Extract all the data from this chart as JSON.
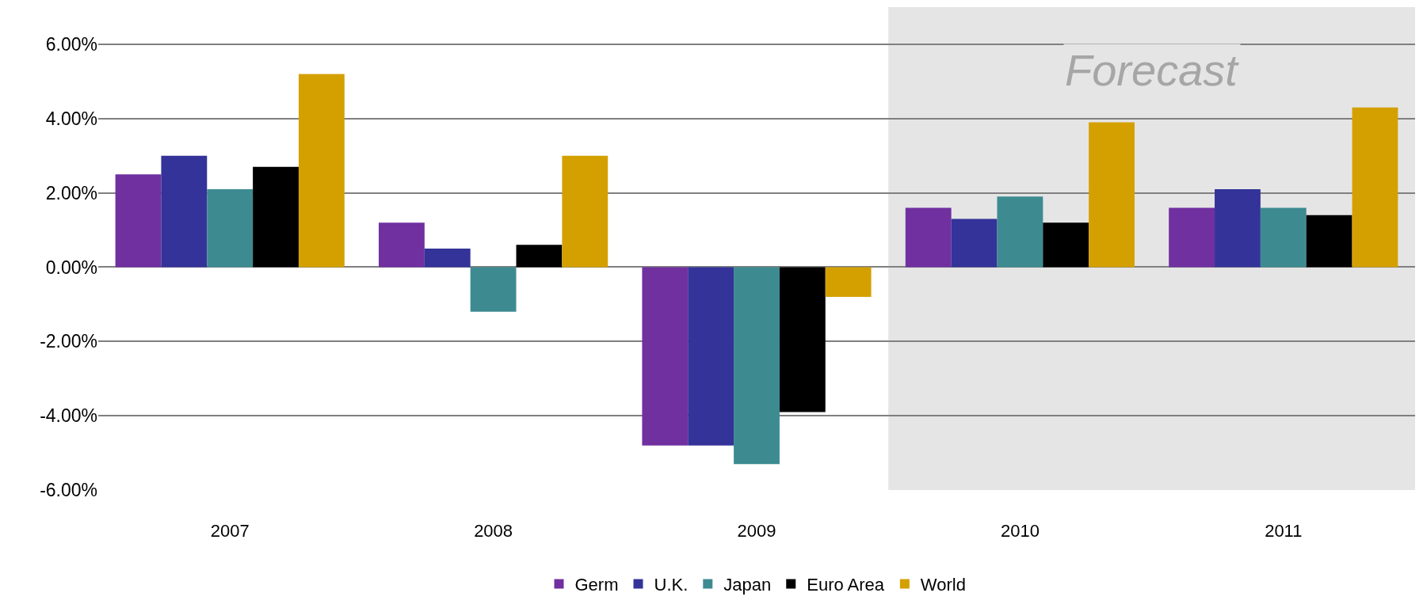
{
  "chart_data": {
    "type": "bar",
    "categories": [
      "2007",
      "2008",
      "2009",
      "2010",
      "2011"
    ],
    "series": [
      {
        "name": "Germ",
        "color": "#7030a0",
        "values": [
          2.5,
          1.2,
          -4.8,
          1.6,
          1.6
        ]
      },
      {
        "name": "U.K.",
        "color": "#333399",
        "values": [
          3.0,
          0.5,
          -4.8,
          1.3,
          2.1
        ]
      },
      {
        "name": "Japan",
        "color": "#3d8b91",
        "values": [
          2.1,
          -1.2,
          -5.3,
          1.9,
          1.6
        ]
      },
      {
        "name": "Euro Area",
        "color": "#000000",
        "values": [
          2.7,
          0.6,
          -3.9,
          1.2,
          1.4
        ]
      },
      {
        "name": "World",
        "color": "#d4a000",
        "values": [
          5.2,
          3.0,
          -0.8,
          3.9,
          4.3
        ]
      }
    ],
    "ylim": [
      -6,
      7
    ],
    "yticks": [
      {
        "value": -6,
        "label": "-6.00%"
      },
      {
        "value": -4,
        "label": "-4.00%"
      },
      {
        "value": -2,
        "label": "-2.00%"
      },
      {
        "value": 0,
        "label": "0.00%"
      },
      {
        "value": 2,
        "label": "2.00%"
      },
      {
        "value": 4,
        "label": "4.00%"
      },
      {
        "value": 6,
        "label": "6.00%"
      }
    ],
    "bands": [
      {
        "axis": "x",
        "from": "2010",
        "to": "2011",
        "label": "Forecast",
        "color": "#e5e5e5"
      }
    ],
    "grid": "y",
    "legend": "bottom"
  }
}
